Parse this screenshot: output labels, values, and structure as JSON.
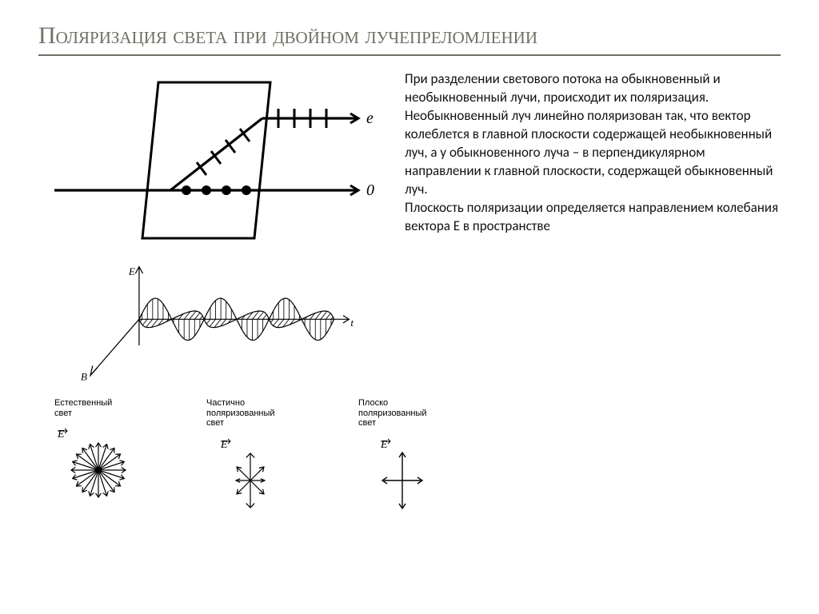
{
  "title_text": "Поляризация света при двойном лучепреломлении",
  "title_fontsize": 30,
  "title_color": "#6f6f65",
  "title_border_color": "#6f6f65",
  "body_text": "При разделении светового потока на обыкновенный и необыкновенный лучи, происходит их поляризация. Необыкновенный луч линейно поляризован так, что вектор колеблется в главной плоскости содержащей необыкновенный луч, а у обыкновенного луча – в перпендикулярном направлении к главной плоскости, содержащей обыкновенный луч.\nПлоскость поляризации определяется направлением колебания вектора Е в пространстве",
  "body_fontsize": 17,
  "body_color": "#111111",
  "diagram_top": {
    "stroke": "#000000",
    "stroke_width": 3.0,
    "dot_radius": 6,
    "e_label": "e",
    "o_label": "0",
    "label_fontsize": 20
  },
  "wave_diagram": {
    "stroke": "#000000",
    "stroke_width": 1.3,
    "hatch_width": 1.0,
    "axis_labels": {
      "e": "E",
      "b": "B",
      "t": "t"
    },
    "axis_fontsize": 14,
    "wave_amplitude": 28,
    "wave_cycles": 3
  },
  "bottom": {
    "label_fontsize": 11,
    "label_color": "#000000",
    "stroke": "#000000",
    "vec_label": "E",
    "items": [
      {
        "label": "Естественный\nсвет",
        "type": "natural"
      },
      {
        "label": "Частично\nполяризованный\nсвет",
        "type": "partial"
      },
      {
        "label": "Плоско\nполяризованный\nсвет",
        "type": "linear"
      }
    ]
  },
  "background_color": "#ffffff"
}
